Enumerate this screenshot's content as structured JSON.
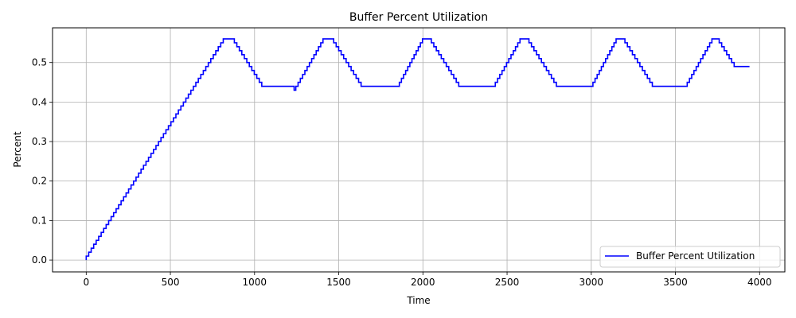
{
  "chart_data": {
    "type": "line",
    "title": "Buffer Percent Utilization",
    "xlabel": "Time",
    "ylabel": "Percent",
    "xlim": [
      -200,
      4150
    ],
    "ylim": [
      -0.03,
      0.588
    ],
    "xticks": [
      0,
      500,
      1000,
      1500,
      2000,
      2500,
      3000,
      3500,
      4000
    ],
    "xtick_labels": [
      "0",
      "500",
      "1000",
      "1500",
      "2000",
      "2500",
      "3000",
      "3500",
      "4000"
    ],
    "yticks": [
      0.0,
      0.1,
      0.2,
      0.3,
      0.4,
      0.5
    ],
    "ytick_labels": [
      "0.0",
      "0.1",
      "0.2",
      "0.3",
      "0.4",
      "0.5"
    ],
    "grid": true,
    "legend_position": "lower-right",
    "series": [
      {
        "name": "Buffer Percent Utilization",
        "color": "#0000ff",
        "step": true,
        "x": [
          0,
          830,
          880,
          1235,
          1245,
          1420,
          1470,
          1820,
          1860,
          2010,
          2050,
          2390,
          2430,
          2590,
          2630,
          2980,
          3010,
          3160,
          3200,
          3540,
          3570,
          3730,
          3760,
          3940
        ],
        "y": [
          0.0,
          0.56,
          0.56,
          0.44,
          0.43,
          0.56,
          0.56,
          0.44,
          0.44,
          0.56,
          0.56,
          0.44,
          0.44,
          0.56,
          0.56,
          0.44,
          0.44,
          0.56,
          0.56,
          0.44,
          0.44,
          0.56,
          0.56,
          0.49
        ]
      }
    ]
  }
}
